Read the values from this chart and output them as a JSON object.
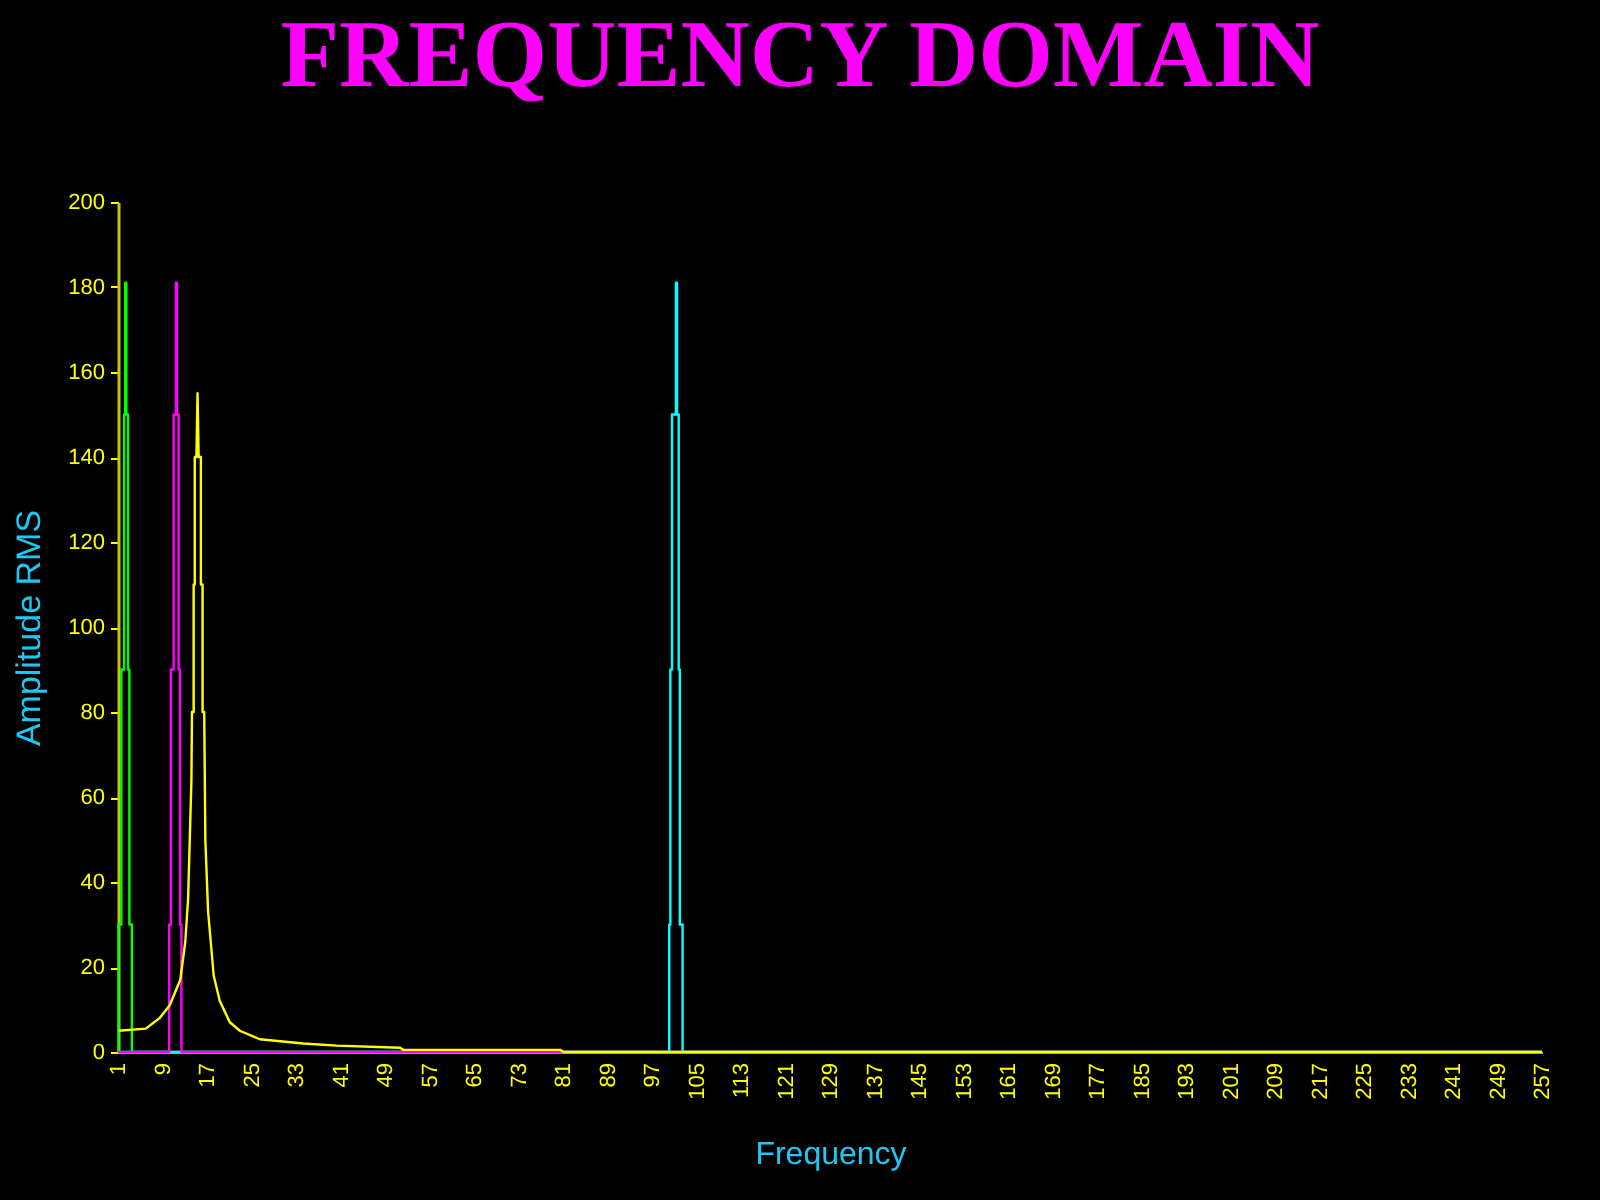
{
  "chart_data": {
    "type": "line",
    "title": "FREQUENCY DOMAIN",
    "xlabel": "Frequency",
    "ylabel": "Amplitude RMS",
    "xlim": [
      1,
      257
    ],
    "xticks": [
      1,
      9,
      17,
      25,
      33,
      41,
      49,
      57,
      65,
      73,
      81,
      89,
      97,
      105,
      113,
      121,
      129,
      137,
      145,
      153,
      161,
      169,
      177,
      185,
      193,
      201,
      209,
      217,
      225,
      233,
      241,
      249,
      257
    ],
    "ylim": [
      0,
      200
    ],
    "yticks": [
      0,
      20,
      40,
      60,
      80,
      100,
      120,
      140,
      160,
      180,
      200
    ],
    "series": [
      {
        "type": "step",
        "color": "#00ff00",
        "x": [
          1,
          1.1,
          1.6,
          2.1,
          2.3,
          2.5,
          2.8,
          3.05,
          3.5,
          257
        ],
        "values": [
          0,
          30,
          90,
          150,
          181,
          150,
          90,
          30,
          0,
          0
        ]
      },
      {
        "type": "step",
        "color": "#00ffff",
        "x": [
          1,
          100.1,
          100.3,
          100.6,
          101.3,
          101.5,
          101.8,
          102.0,
          102.5,
          257
        ],
        "values": [
          0,
          30,
          90,
          150,
          181,
          150,
          90,
          30,
          0,
          0
        ]
      },
      {
        "type": "step",
        "color": "#ff00ff",
        "x": [
          1,
          10.2,
          10.5,
          11.0,
          11.4,
          11.6,
          11.9,
          12.15,
          12.4,
          257
        ],
        "values": [
          0,
          30,
          90,
          150,
          181,
          150,
          90,
          30,
          0,
          0
        ]
      },
      {
        "color": "#ffff00",
        "x": [
          1.1,
          6,
          8.5,
          10.3,
          12.2,
          13.1,
          13.6,
          14.2,
          14.3,
          14.6,
          14.6,
          14.8,
          14.8,
          15.1,
          15.3,
          15.5,
          15.9,
          15.9,
          16.2,
          16.2,
          16.5,
          16.7,
          17.2,
          18.2,
          19.3,
          21.1,
          22.9,
          26.5,
          34.3,
          40.3,
          51.7,
          52.3,
          80.5,
          81.1,
          257
        ],
        "values": [
          5,
          5.5,
          8,
          11,
          17,
          26,
          36,
          64,
          80,
          80,
          110,
          110,
          140,
          140,
          155,
          140,
          140,
          110,
          110,
          80,
          80,
          50,
          33,
          18,
          12,
          7,
          5,
          3,
          2,
          1.5,
          1,
          0.5,
          0.5,
          0,
          0
        ]
      }
    ]
  }
}
